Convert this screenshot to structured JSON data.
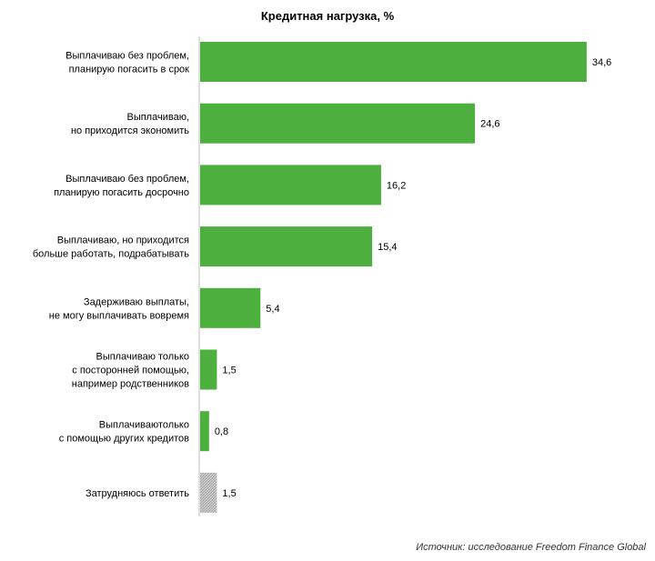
{
  "chart_data": {
    "type": "bar",
    "orientation": "horizontal",
    "title": "Кредитная нагрузка, %",
    "categories": [
      [
        "Выплачиваю без проблем,",
        "планирую погасить в срок"
      ],
      [
        "Выплачиваю,",
        "но приходится экономить"
      ],
      [
        "Выплачиваю без проблем,",
        "планирую погасить досрочно"
      ],
      [
        "Выплачиваю, но приходится",
        "больше работать, подрабатывать"
      ],
      [
        "Задерживаю выплаты,",
        "не могу выплачивать вовремя"
      ],
      [
        "Выплачиваю только",
        "с посторонней помощью,",
        "например родственников"
      ],
      [
        "Выплачиваютолько",
        "с помощью других кредитов"
      ],
      [
        "Затрудняюсь ответить"
      ]
    ],
    "values": [
      34.6,
      24.6,
      16.2,
      15.4,
      5.4,
      1.5,
      0.8,
      1.5
    ],
    "value_labels": [
      "34,6",
      "24,6",
      "16,2",
      "15,4",
      "5,4",
      "1,5",
      "0,8",
      "1,5"
    ],
    "bar_colors": [
      "#4caf3e",
      "#4caf3e",
      "#4caf3e",
      "#4caf3e",
      "#4caf3e",
      "#4caf3e",
      "#4caf3e",
      "#bdbdbd"
    ],
    "hatched": [
      false,
      false,
      false,
      false,
      false,
      false,
      false,
      true
    ],
    "xlim": [
      0,
      35
    ],
    "xlabel": "",
    "ylabel": "",
    "grid": false,
    "legend": "none"
  },
  "source_text": "Источник: исследование Freedom Finance Global"
}
